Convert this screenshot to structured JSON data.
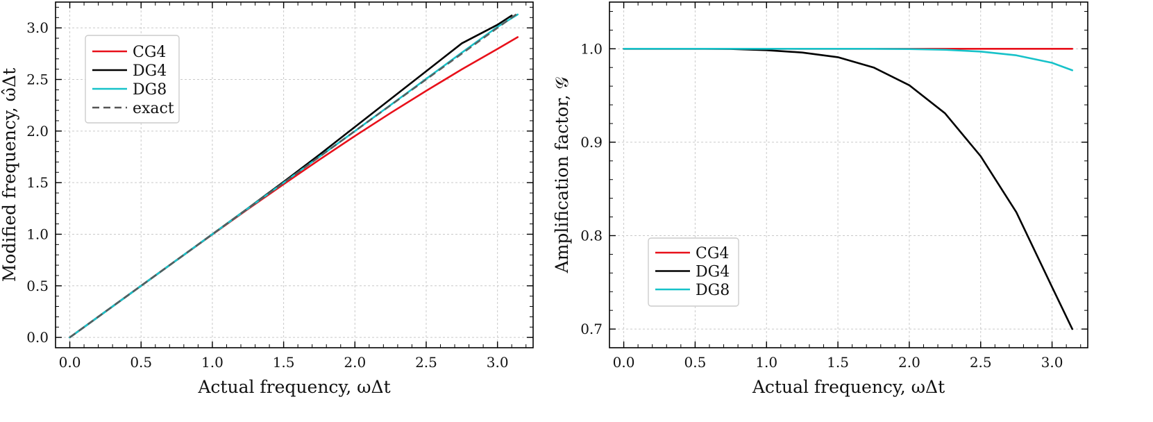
{
  "chart_data": [
    {
      "type": "line",
      "xlabel": "Actual frequency, ωΔt",
      "ylabel": "Modified frequency, ω̂Δt",
      "xlim": [
        -0.1,
        3.25
      ],
      "ylim": [
        -0.1,
        3.25
      ],
      "xticks": [
        "0.0",
        "0.5",
        "1.0",
        "1.5",
        "2.0",
        "2.5",
        "3.0"
      ],
      "yticks": [
        "0.0",
        "0.5",
        "1.0",
        "1.5",
        "2.0",
        "2.5",
        "3.0"
      ],
      "grid": true,
      "legend_position": "top-left",
      "x": [
        0,
        0.25,
        0.5,
        0.75,
        1.0,
        1.25,
        1.5,
        1.75,
        2.0,
        2.25,
        2.5,
        2.75,
        3.0,
        3.1416
      ],
      "series": [
        {
          "name": "CG4",
          "color": "#e8101a",
          "dash": "solid",
          "values": [
            0,
            0.25,
            0.5,
            0.75,
            0.998,
            1.244,
            1.485,
            1.722,
            1.952,
            2.175,
            2.39,
            2.598,
            2.796,
            2.91
          ]
        },
        {
          "name": "DG4",
          "color": "#000000",
          "dash": "solid",
          "x": [
            0,
            0.25,
            0.5,
            0.75,
            1.0,
            1.25,
            1.5,
            1.75,
            2.0,
            2.25,
            2.5,
            2.75,
            3.0,
            3.1
          ],
          "values": [
            0,
            0.25,
            0.5,
            0.75,
            1.0,
            1.252,
            1.508,
            1.77,
            2.04,
            2.31,
            2.58,
            2.85,
            3.03,
            3.12
          ]
        },
        {
          "name": "DG8",
          "color": "#17c2c9",
          "dash": "solid",
          "values": [
            0,
            0.25,
            0.5,
            0.75,
            1.0,
            1.25,
            1.5,
            1.75,
            2.0,
            2.252,
            2.506,
            2.76,
            3.01,
            3.13
          ]
        },
        {
          "name": "exact",
          "color": "#555555",
          "dash": "dashed",
          "values": [
            0,
            0.25,
            0.5,
            0.75,
            1.0,
            1.25,
            1.5,
            1.75,
            2.0,
            2.25,
            2.5,
            2.75,
            3.0,
            3.1416
          ]
        }
      ]
    },
    {
      "type": "line",
      "xlabel": "Actual frequency, ωΔt",
      "ylabel": "Amplification factor, 𝒢",
      "xlim": [
        -0.1,
        3.25
      ],
      "ylim": [
        0.68,
        1.05
      ],
      "xticks": [
        "0.0",
        "0.5",
        "1.0",
        "1.5",
        "2.0",
        "2.5",
        "3.0"
      ],
      "yticks": [
        "0.7",
        "0.8",
        "0.9",
        "1.0"
      ],
      "grid": true,
      "legend_position": "lower-left",
      "x": [
        0,
        0.25,
        0.5,
        0.75,
        1.0,
        1.25,
        1.5,
        1.75,
        2.0,
        2.25,
        2.5,
        2.75,
        3.0,
        3.1416
      ],
      "series": [
        {
          "name": "CG4",
          "color": "#e8101a",
          "dash": "solid",
          "values": [
            1,
            1,
            1,
            1,
            1,
            1,
            1,
            1,
            1,
            1,
            1,
            1,
            1,
            1
          ]
        },
        {
          "name": "DG4",
          "color": "#000000",
          "dash": "solid",
          "values": [
            1.0,
            1.0,
            1.0,
            0.9998,
            0.9985,
            0.996,
            0.991,
            0.98,
            0.961,
            0.931,
            0.885,
            0.825,
            0.745,
            0.7
          ]
        },
        {
          "name": "DG8",
          "color": "#17c2c9",
          "dash": "solid",
          "values": [
            1,
            1,
            1,
            1,
            1,
            1,
            1,
            1,
            0.9997,
            0.999,
            0.997,
            0.993,
            0.985,
            0.977
          ]
        }
      ]
    }
  ]
}
